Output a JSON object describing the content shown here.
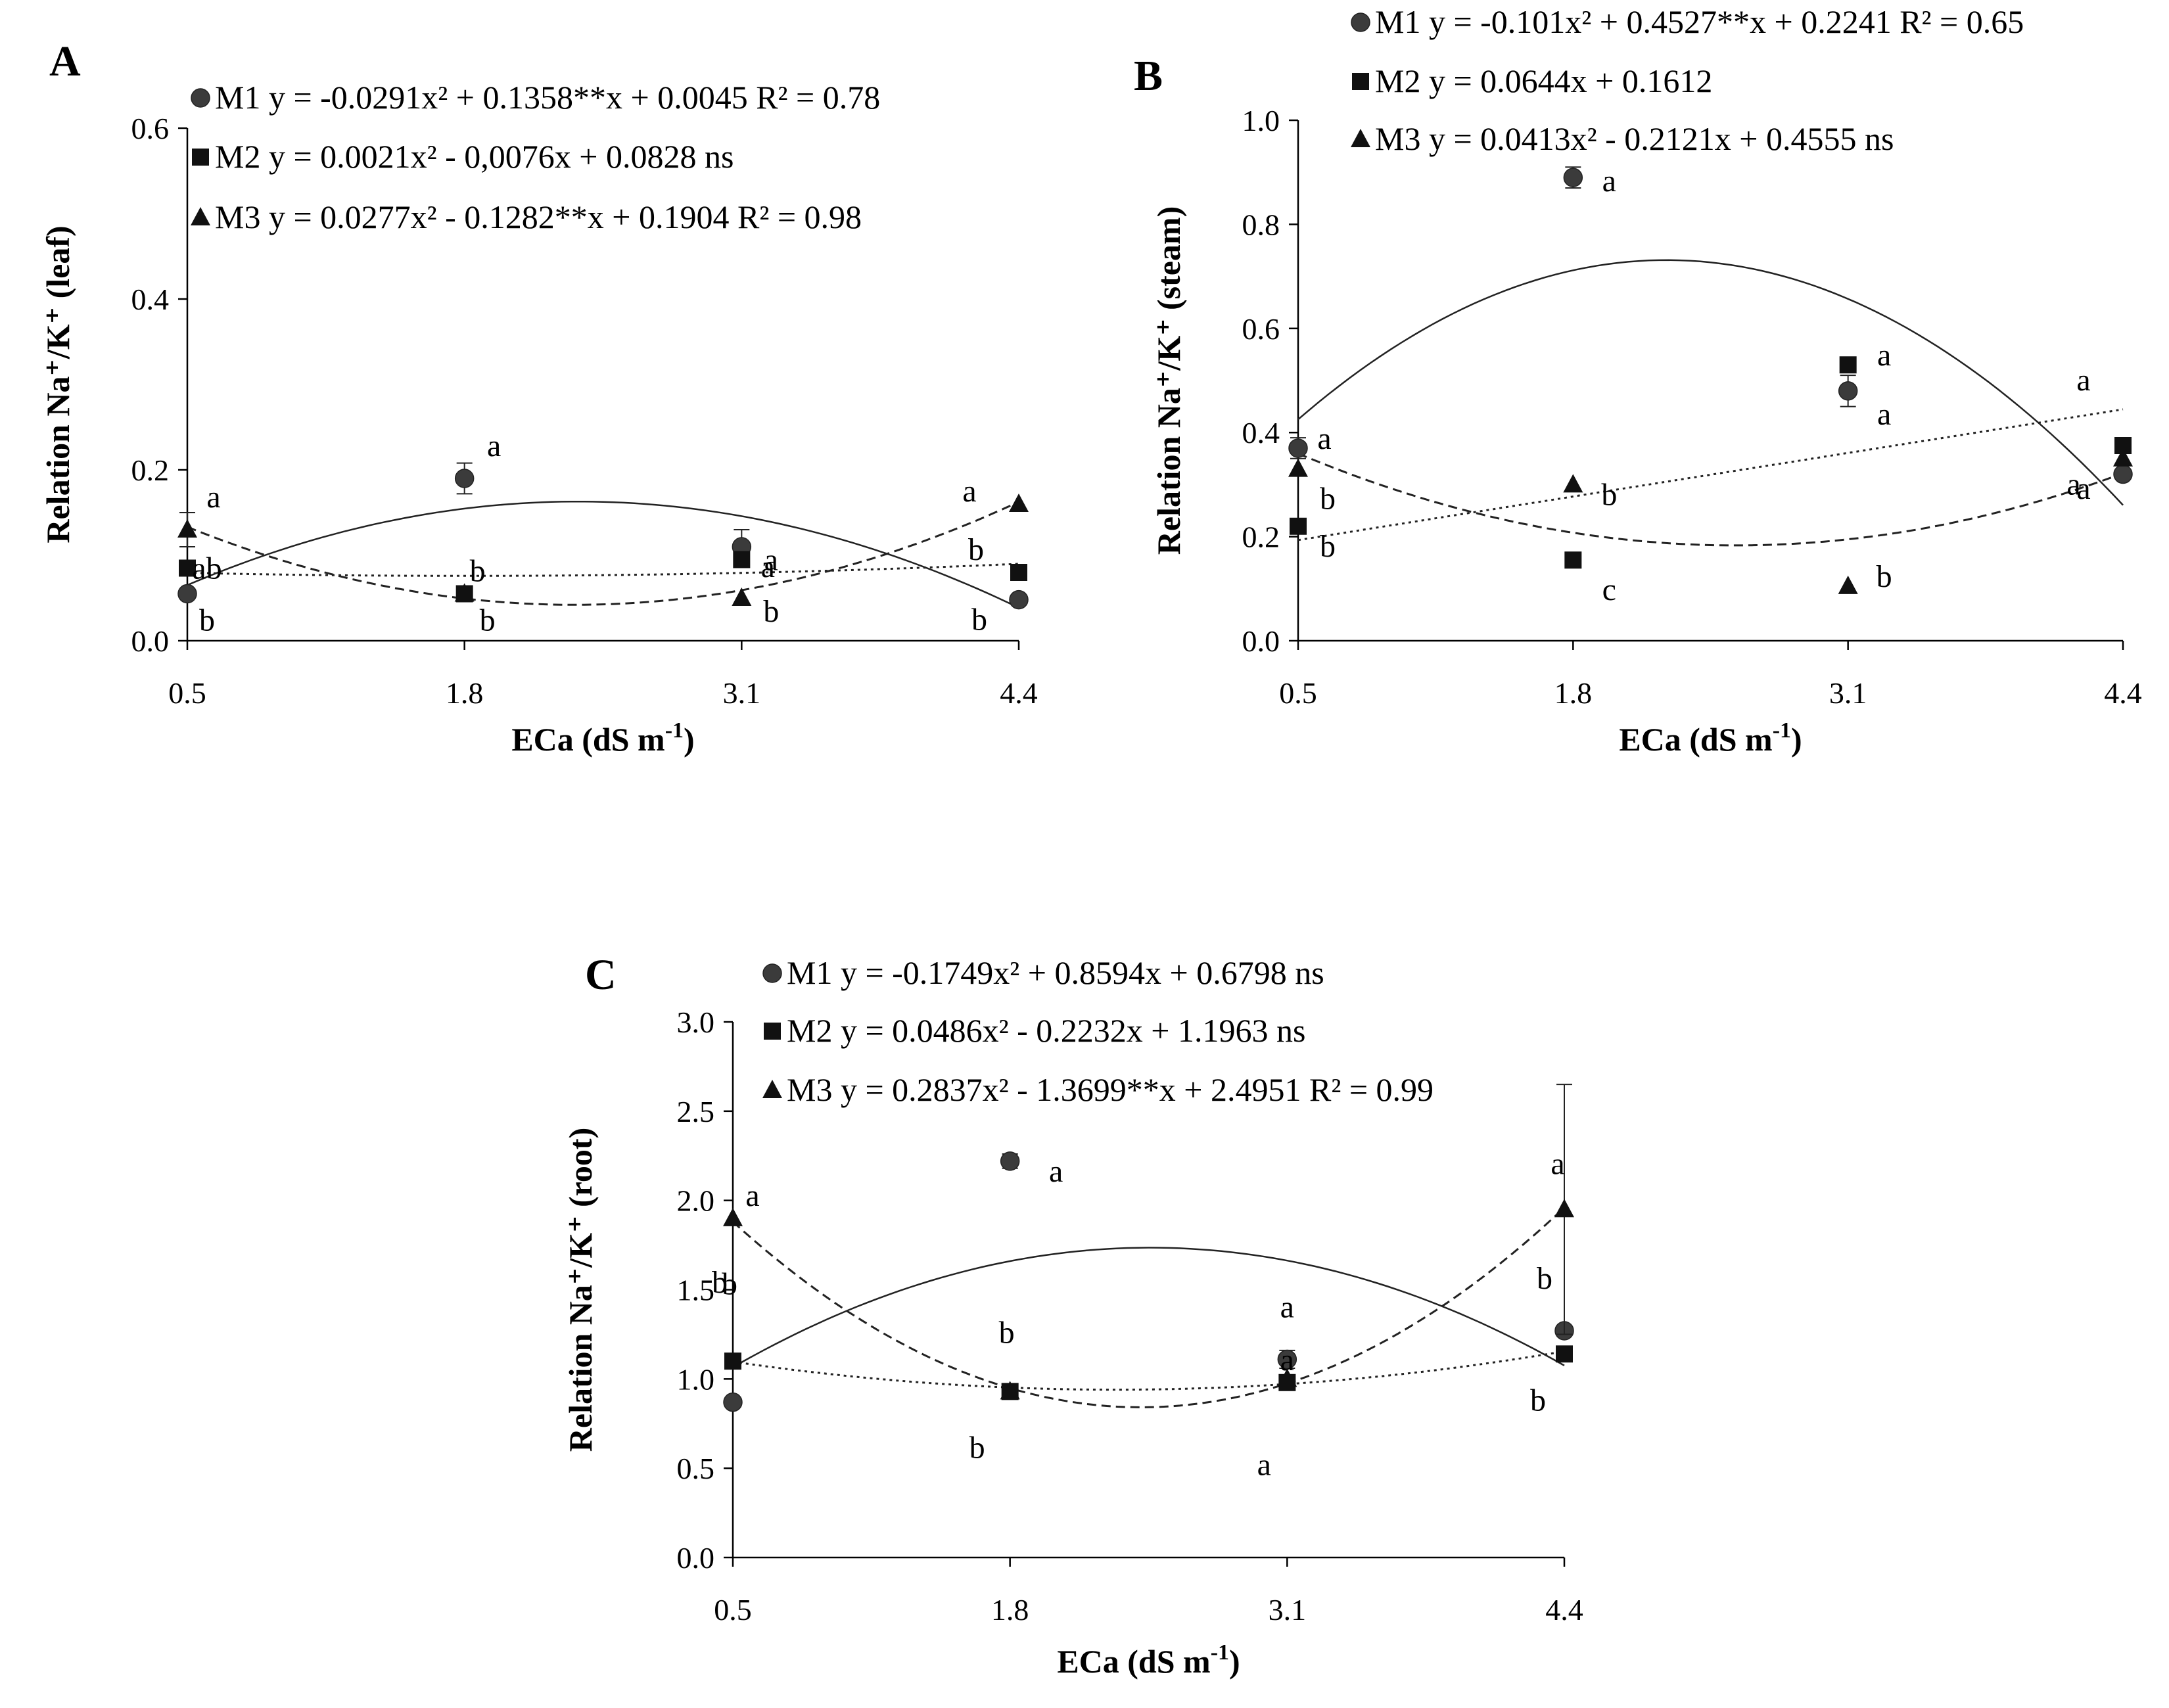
{
  "chart_data": [
    {
      "type": "scatter",
      "panel_label": "A",
      "xlabel": "ECa (dS m",
      "xlabel_sup": "-1",
      "xlabel_end": ")",
      "ylabel": "Relation Na⁺/K⁺ (leaf)",
      "x_ticks": [
        "0.5",
        "1.8",
        "3.1",
        "4.4"
      ],
      "y_ticks": [
        "0.0",
        "0.2",
        "0.4",
        "0.6"
      ],
      "ylim": [
        0,
        0.6
      ],
      "xlim": [
        0.5,
        4.4
      ],
      "series": [
        {
          "name": "M1",
          "marker": "circle",
          "line_style": "solid",
          "equation": "M1 y = -0.0291x² + 0.1358**x + 0.0045 R² = 0.78",
          "coef": [
            -0.0291,
            0.1358,
            0.0045
          ],
          "x": [
            0.5,
            1.8,
            3.1,
            4.4
          ],
          "y": [
            0.055,
            0.19,
            0.11,
            0.048
          ],
          "err": [
            0.0,
            0.018,
            0.02,
            0.0
          ],
          "letters": [
            "b",
            "a",
            "a",
            "b"
          ]
        },
        {
          "name": "M2",
          "marker": "square",
          "line_style": "dotted",
          "equation": "M2 y = 0.0021x² - 0,0076x + 0.0828 ns",
          "coef": [
            0.0021,
            -0.0076,
            0.0828
          ],
          "x": [
            0.5,
            1.8,
            3.1,
            4.4
          ],
          "y": [
            0.085,
            0.055,
            0.095,
            0.08
          ],
          "err": [
            0.0,
            0.0,
            0.0,
            0.0
          ],
          "letters": [
            "ab",
            "b",
            "a",
            "b"
          ]
        },
        {
          "name": "M3",
          "marker": "triangle",
          "line_style": "dashed",
          "equation": "M3 y = 0.0277x² - 0.1282**x + 0.1904 R² = 0.98",
          "coef": [
            0.0277,
            -0.1282,
            0.1904
          ],
          "x": [
            0.5,
            1.8,
            3.1,
            4.4
          ],
          "y": [
            0.13,
            0.055,
            0.05,
            0.16
          ],
          "err": [
            0.02,
            0.0,
            0.0,
            0.0
          ],
          "letters": [
            "a",
            "b",
            "b",
            "a"
          ]
        }
      ]
    },
    {
      "type": "scatter",
      "panel_label": "B",
      "xlabel": "ECa (dS m",
      "xlabel_sup": "-1",
      "xlabel_end": ")",
      "ylabel": "Relation Na⁺/K⁺ (steam)",
      "x_ticks": [
        "0.5",
        "1.8",
        "3.1",
        "4.4"
      ],
      "y_ticks": [
        "0.0",
        "0.2",
        "0.4",
        "0.6",
        "0.8",
        "1.0"
      ],
      "ylim": [
        0,
        1.0
      ],
      "xlim": [
        0.5,
        4.4
      ],
      "series": [
        {
          "name": "M1",
          "marker": "circle",
          "line_style": "solid",
          "equation": "M1 y = -0.101x² + 0.4527**x + 0.2241 R² = 0.65",
          "coef": [
            -0.101,
            0.4527,
            0.2241
          ],
          "x": [
            0.5,
            1.8,
            3.1,
            4.4
          ],
          "y": [
            0.37,
            0.89,
            0.48,
            0.32
          ],
          "err": [
            0.02,
            0.02,
            0.03,
            0.0
          ],
          "letters": [
            "a",
            "a",
            "a",
            "a"
          ]
        },
        {
          "name": "M2",
          "marker": "square",
          "line_style": "dotted",
          "equation": "M2 y = 0.0644x + 0.1612",
          "coef": [
            0.0,
            0.0644,
            0.1612
          ],
          "x": [
            0.5,
            1.8,
            3.1,
            4.4
          ],
          "y": [
            0.22,
            0.155,
            0.53,
            0.375
          ],
          "err": [
            0.0,
            0.0,
            0.0,
            0.0
          ],
          "letters": [
            "b",
            "c",
            "a",
            "a"
          ]
        },
        {
          "name": "M3",
          "marker": "triangle",
          "line_style": "dashed",
          "equation": "M3 y = 0.0413x² - 0.2121x + 0.4555 ns",
          "coef": [
            0.0413,
            -0.2121,
            0.4555
          ],
          "x": [
            0.5,
            1.8,
            3.1,
            4.4
          ],
          "y": [
            0.33,
            0.3,
            0.105,
            0.35
          ],
          "err": [
            0.0,
            0.0,
            0.0,
            0.0
          ],
          "letters": [
            "b",
            "b",
            "b",
            "a"
          ]
        }
      ]
    },
    {
      "type": "scatter",
      "panel_label": "C",
      "xlabel": "ECa (dS m",
      "xlabel_sup": "-1",
      "xlabel_end": ")",
      "ylabel": "Relation Na⁺/K⁺ (root)",
      "x_ticks": [
        "0.5",
        "1.8",
        "3.1",
        "4.4"
      ],
      "y_ticks": [
        "0.0",
        "0.5",
        "1.0",
        "1.5",
        "2.0",
        "2.5",
        "3.0"
      ],
      "ylim": [
        0,
        3.0
      ],
      "xlim": [
        0.5,
        4.4
      ],
      "series": [
        {
          "name": "M1",
          "marker": "circle",
          "line_style": "solid",
          "equation": "M1 y = -0.1749x² + 0.8594x + 0.6798 ns",
          "coef": [
            -0.1749,
            0.8594,
            0.6798
          ],
          "x": [
            0.5,
            1.8,
            3.1,
            4.4
          ],
          "y": [
            0.87,
            2.22,
            1.11,
            1.27
          ],
          "err": [
            0.0,
            0.04,
            0.05,
            0.0
          ],
          "letters": [
            "b",
            "a",
            "a",
            "b"
          ]
        },
        {
          "name": "M2",
          "marker": "square",
          "line_style": "dotted",
          "equation": "M2 y = 0.0486x² - 0.2232x + 1.1963 ns",
          "coef": [
            0.0486,
            -0.2232,
            1.1963
          ],
          "x": [
            0.5,
            1.8,
            3.1,
            4.4
          ],
          "y": [
            1.1,
            0.93,
            0.98,
            1.14
          ],
          "err": [
            0.0,
            0.0,
            0.0,
            0.0
          ],
          "letters": [
            "b",
            "b",
            "a",
            "b"
          ]
        },
        {
          "name": "M3",
          "marker": "triangle",
          "line_style": "dashed",
          "equation": "M3 y = 0.2837x² - 1.3699**x + 2.4951 R² = 0.99",
          "coef": [
            0.2837,
            -1.3699,
            2.4951
          ],
          "x": [
            0.5,
            1.8,
            3.1,
            4.4
          ],
          "y": [
            1.9,
            0.93,
            1.0,
            1.95
          ],
          "err": [
            0.0,
            0.0,
            0.0,
            0.7
          ],
          "letters": [
            "a",
            "b",
            "a",
            "a"
          ]
        }
      ]
    }
  ]
}
